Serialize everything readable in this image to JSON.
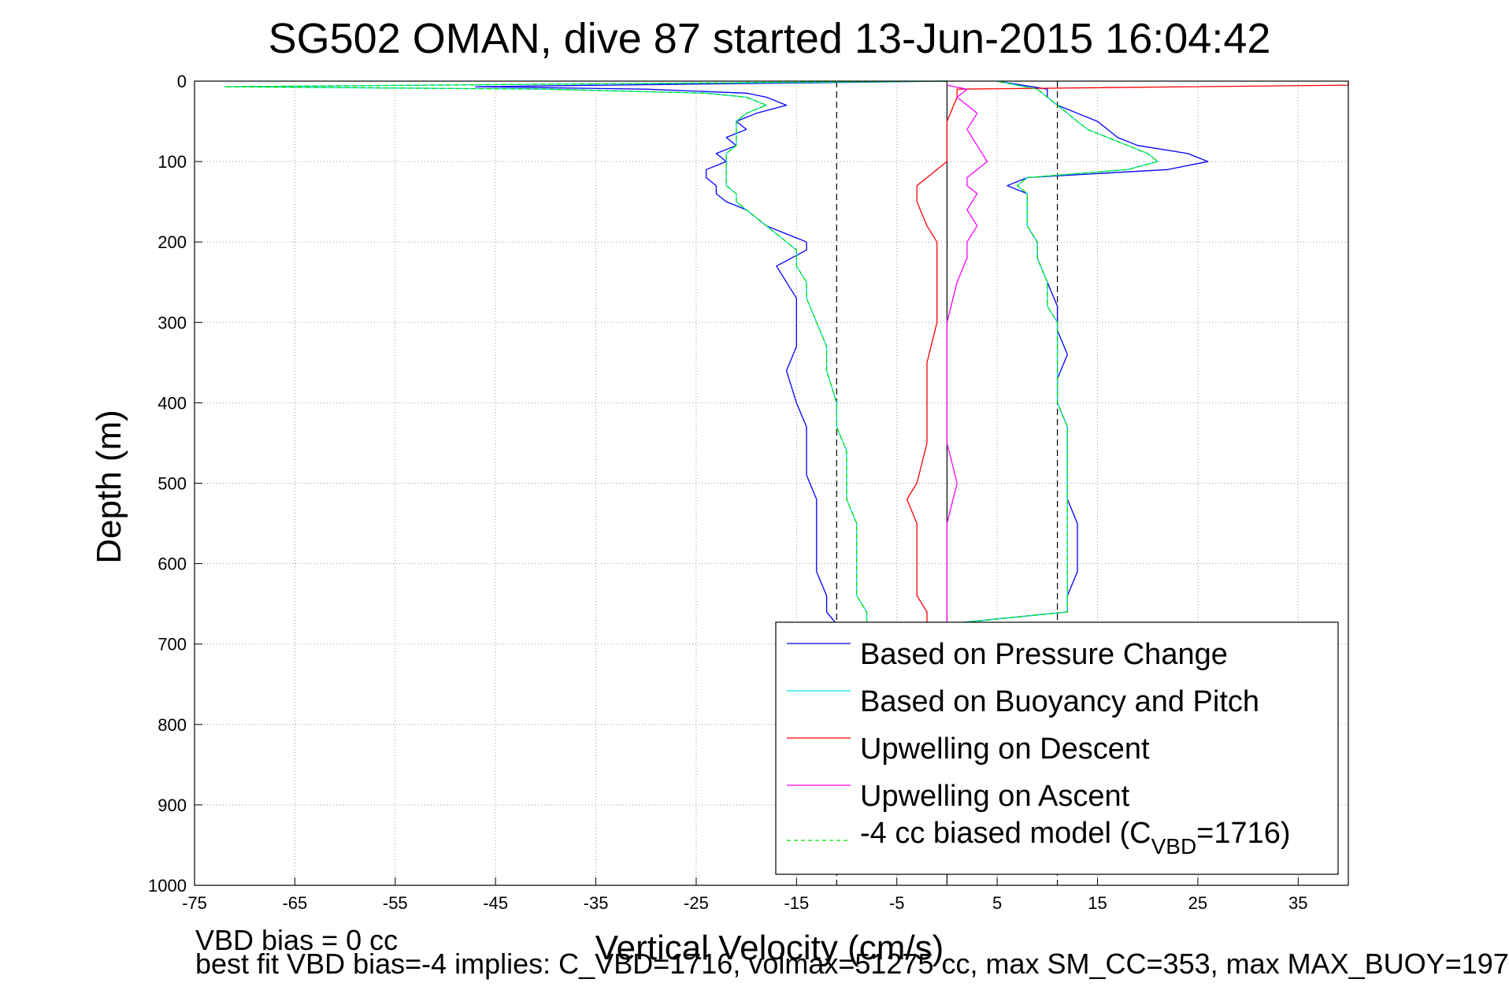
{
  "chart_data": {
    "type": "line",
    "title": "SG502 OMAN, dive 87 started 13-Jun-2015 16:04:42",
    "xlabel": "Vertical Velocity (cm/s)",
    "ylabel": "Depth (m)",
    "xlim": [
      -75,
      40
    ],
    "ylim": [
      0,
      1000
    ],
    "y_reversed": true,
    "grid": true,
    "x_ticks": [
      -75,
      -65,
      -55,
      -45,
      -35,
      -25,
      -15,
      -5,
      5,
      15,
      25,
      35
    ],
    "y_ticks": [
      0,
      100,
      200,
      300,
      400,
      500,
      600,
      700,
      800,
      900,
      1000
    ],
    "reference_lines": [
      {
        "style": "dashed",
        "color": "#000000",
        "x": -11
      },
      {
        "style": "solid",
        "color": "#000000",
        "x": 0
      },
      {
        "style": "dashed",
        "color": "#000000",
        "x": 11
      }
    ],
    "legend_position": "lower-right",
    "series": [
      {
        "name": "Based on Pressure Change",
        "color": "#0000ff",
        "descent": {
          "depth": [
            0,
            7,
            10,
            15,
            20,
            30,
            40,
            50,
            60,
            70,
            80,
            90,
            100,
            110,
            120,
            130,
            140,
            150,
            160,
            170,
            180,
            190,
            200,
            210,
            230,
            250,
            270,
            300,
            330,
            360,
            400,
            430,
            460,
            490,
            520,
            550,
            580,
            610,
            640,
            660,
            675
          ],
          "velocity": [
            0,
            -47,
            -30,
            -20,
            -18,
            -16,
            -19,
            -21,
            -20,
            -22,
            -21,
            -23,
            -22,
            -24,
            -24,
            -23,
            -23,
            -22,
            -20,
            -19,
            -18,
            -16,
            -14,
            -14,
            -17,
            -16,
            -15,
            -15,
            -15,
            -16,
            -15,
            -14,
            -14,
            -14,
            -13,
            -13,
            -13,
            -13,
            -12,
            -12,
            -11
          ]
        },
        "ascent": {
          "depth": [
            675,
            660,
            640,
            610,
            580,
            550,
            520,
            490,
            460,
            430,
            400,
            370,
            340,
            310,
            300,
            280,
            250,
            220,
            200,
            180,
            160,
            140,
            130,
            120,
            110,
            100,
            90,
            80,
            70,
            60,
            50,
            40,
            30,
            20,
            10,
            0
          ],
          "velocity": [
            0,
            12,
            12,
            13,
            13,
            13,
            12,
            12,
            12,
            12,
            11,
            11,
            12,
            11,
            11,
            11,
            10,
            9,
            9,
            8,
            8,
            8,
            6,
            8,
            22,
            26,
            24,
            19,
            17,
            16,
            15,
            13,
            11,
            10,
            10,
            5
          ]
        }
      },
      {
        "name": "Based on Buoyancy and Pitch",
        "color": "#00e0e0",
        "descent": {
          "depth": [
            0,
            7,
            10,
            15,
            20,
            30,
            40,
            50,
            60,
            70,
            80,
            90,
            100,
            110,
            120,
            130,
            140,
            150,
            160,
            170,
            180,
            190,
            200,
            210,
            230,
            250,
            270,
            300,
            330,
            360,
            400,
            430,
            460,
            490,
            520,
            550,
            580,
            610,
            640,
            660,
            675
          ],
          "velocity": [
            0,
            -72,
            -40,
            -24,
            -20,
            -18,
            -20,
            -21,
            -21,
            -21,
            -21,
            -22,
            -22,
            -22,
            -22,
            -22,
            -21,
            -21,
            -20,
            -19,
            -18,
            -17,
            -16,
            -15,
            -15,
            -14,
            -14,
            -13,
            -12,
            -12,
            -11,
            -11,
            -10,
            -10,
            -10,
            -9,
            -9,
            -9,
            -9,
            -8,
            -8
          ]
        },
        "ascent": {
          "depth": [
            675,
            660,
            640,
            610,
            580,
            550,
            520,
            490,
            460,
            430,
            400,
            370,
            340,
            310,
            300,
            280,
            250,
            220,
            200,
            180,
            160,
            140,
            130,
            120,
            110,
            100,
            90,
            80,
            70,
            60,
            50,
            40,
            30,
            20,
            10,
            0
          ],
          "velocity": [
            0,
            12,
            12,
            12,
            12,
            12,
            12,
            12,
            12,
            12,
            11,
            11,
            11,
            11,
            11,
            10,
            10,
            9,
            9,
            8,
            8,
            8,
            7,
            8,
            18,
            21,
            20,
            18,
            16,
            14,
            13,
            12,
            11,
            10,
            9,
            5
          ]
        }
      },
      {
        "name": "Upwelling on Descent",
        "color": "#ff0000",
        "depth": [
          0,
          5,
          10,
          20,
          50,
          100,
          110,
          120,
          130,
          150,
          180,
          200,
          250,
          300,
          350,
          400,
          450,
          500,
          520,
          550,
          600,
          640,
          660,
          675
        ],
        "velocity": [
          40,
          40,
          1,
          1,
          0,
          0,
          -1,
          -2,
          -3,
          -3,
          -2,
          -1,
          -1,
          -1,
          -2,
          -2,
          -2,
          -3,
          -4,
          -3,
          -3,
          -3,
          -2,
          -2
        ]
      },
      {
        "name": "Upwelling on Ascent",
        "color": "#ff00ff",
        "depth": [
          675,
          650,
          600,
          550,
          500,
          450,
          400,
          350,
          300,
          250,
          220,
          200,
          180,
          160,
          140,
          130,
          120,
          100,
          80,
          60,
          40,
          20,
          10,
          5
        ],
        "velocity": [
          0,
          0,
          0,
          0,
          1,
          0,
          0,
          0,
          0,
          1,
          2,
          2,
          3,
          2,
          3,
          2,
          2,
          4,
          3,
          2,
          3,
          1,
          2,
          0
        ]
      },
      {
        "name": "-4 cc biased model (CVBD=1716)",
        "color": "#00dd00",
        "dashed": true,
        "descent": {
          "depth": [
            0,
            7,
            10,
            15,
            20,
            30,
            40,
            50,
            60,
            70,
            80,
            90,
            100,
            110,
            120,
            130,
            140,
            150,
            160,
            170,
            180,
            190,
            200,
            210,
            230,
            250,
            270,
            300,
            330,
            360,
            400,
            430,
            460,
            490,
            520,
            550,
            580,
            610,
            640,
            660,
            675
          ],
          "velocity": [
            0,
            -72,
            -40,
            -24,
            -20,
            -18,
            -20,
            -21,
            -21,
            -21,
            -21,
            -22,
            -22,
            -22,
            -22,
            -22,
            -21,
            -21,
            -20,
            -19,
            -18,
            -17,
            -16,
            -15,
            -15,
            -14,
            -14,
            -13,
            -12,
            -12,
            -11,
            -11,
            -10,
            -10,
            -10,
            -9,
            -9,
            -9,
            -9,
            -8,
            -8
          ]
        },
        "ascent": {
          "depth": [
            675,
            660,
            640,
            610,
            580,
            550,
            520,
            490,
            460,
            430,
            400,
            370,
            340,
            310,
            300,
            280,
            250,
            220,
            200,
            180,
            160,
            140,
            130,
            120,
            110,
            100,
            90,
            80,
            70,
            60,
            50,
            40,
            30,
            20,
            10,
            0
          ],
          "velocity": [
            0,
            12,
            12,
            12,
            12,
            12,
            12,
            12,
            12,
            12,
            11,
            11,
            11,
            11,
            11,
            10,
            10,
            9,
            9,
            8,
            8,
            8,
            7,
            8,
            18,
            21,
            20,
            18,
            16,
            14,
            13,
            12,
            11,
            10,
            9,
            5
          ]
        }
      }
    ]
  },
  "legend": {
    "entries": [
      "Based on Pressure Change",
      "Based on Buoyancy and Pitch",
      "Upwelling on Descent",
      "Upwelling on Ascent"
    ],
    "biased_prefix": "-4 cc biased model (C",
    "biased_sub": "VBD",
    "biased_suffix": "=1716)"
  },
  "footer": {
    "line1": "VBD bias = 0 cc",
    "line2": "best fit VBD bias=-4 implies: C_VBD=1716, volmax=51275 cc, max SM_CC=353, max MAX_BUOY=197"
  }
}
